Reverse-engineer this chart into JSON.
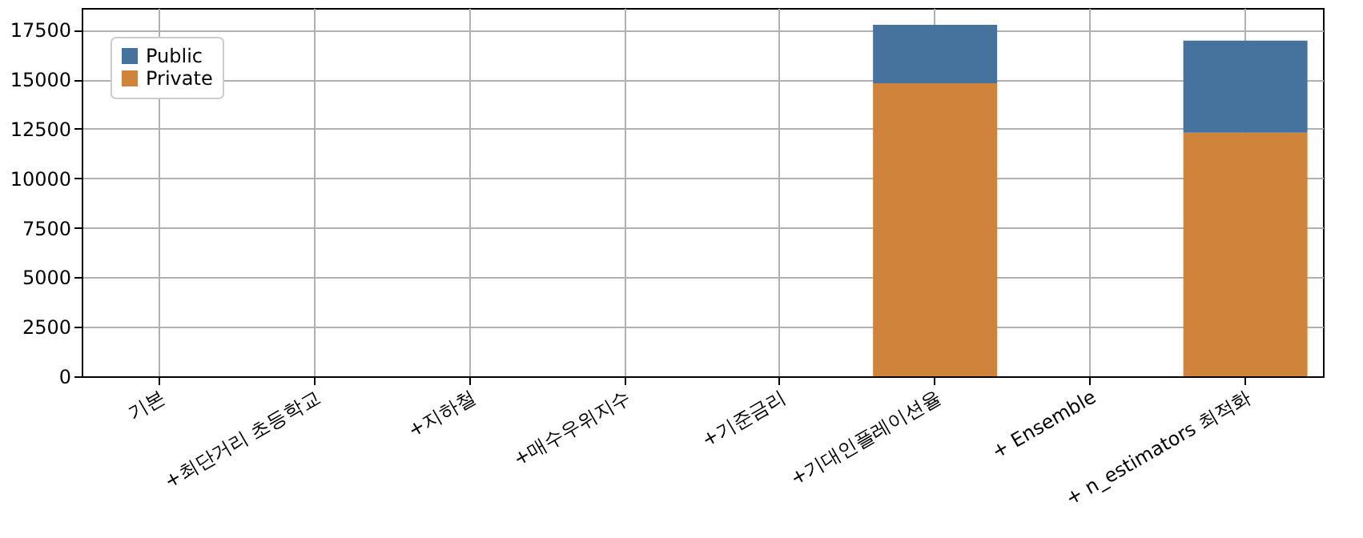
{
  "chart_data": {
    "type": "bar",
    "stacked": true,
    "categories": [
      "기본",
      "+최단거리 초등학교",
      "+지하철",
      "+매수우위지수",
      "+기준금리",
      "+기대인플레이션율",
      "+ Ensemble",
      "+ n_estimators 최적화"
    ],
    "series": [
      {
        "name": "Private",
        "color": "#d0843b",
        "values": [
          null,
          null,
          null,
          null,
          null,
          14800,
          null,
          12300
        ]
      },
      {
        "name": "Public",
        "color": "#46729e",
        "values": [
          null,
          null,
          null,
          null,
          null,
          2950,
          null,
          4650
        ]
      }
    ],
    "ylim": [
      0,
      18600
    ],
    "yticks": [
      0,
      2500,
      5000,
      7500,
      10000,
      12500,
      15000,
      17500
    ],
    "grid": true,
    "legend": "top left"
  }
}
